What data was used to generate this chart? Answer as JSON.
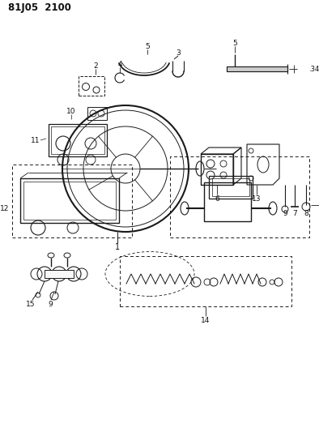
{
  "title": "81J05  2100",
  "bg_color": "#ffffff",
  "lc": "#1a1a1a",
  "fig_width": 3.94,
  "fig_height": 5.33,
  "dpi": 100
}
